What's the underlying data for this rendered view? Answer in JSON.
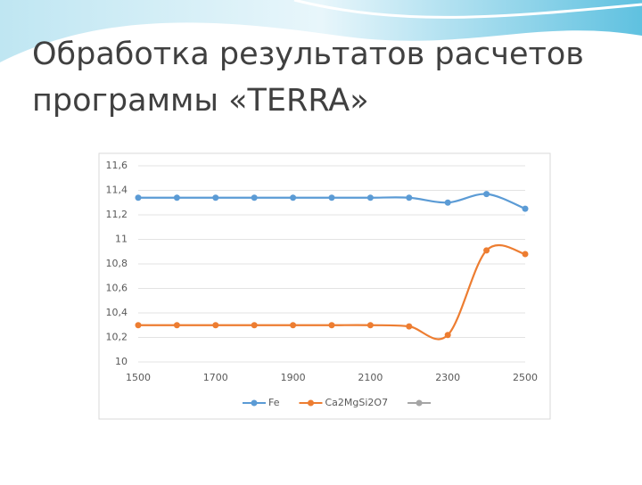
{
  "slide_title": [
    "Обработка результатов расчетов",
    "программы «TERRA»"
  ],
  "chart_data": {
    "type": "line",
    "x": [
      1500,
      1600,
      1700,
      1800,
      1900,
      2000,
      2100,
      2200,
      2300,
      2400,
      2500
    ],
    "xlim": [
      1500,
      2500
    ],
    "xticks": [
      1500,
      1700,
      1900,
      2100,
      2300,
      2500
    ],
    "ylim": [
      10,
      11.6
    ],
    "yticks": [
      10,
      {
        "value": 10.2,
        "label": "10,2"
      },
      {
        "value": 10.4,
        "label": "10,4"
      },
      {
        "value": 10.6,
        "label": "10,6"
      },
      {
        "value": 10.8,
        "label": "10,8"
      },
      11,
      {
        "value": 11.2,
        "label": "11,2"
      },
      {
        "value": 11.4,
        "label": "11,4"
      },
      {
        "value": 11.6,
        "label": "11,6"
      }
    ],
    "grid": true,
    "smooth": true,
    "legend": "bottom",
    "series": [
      {
        "name": "Fe",
        "color": "#5b9bd5",
        "values": [
          11.34,
          11.34,
          11.34,
          11.34,
          11.34,
          11.34,
          11.34,
          11.34,
          11.3,
          11.37,
          11.25
        ]
      },
      {
        "name": "Ca2MgSi2O7",
        "color": "#ed7d31",
        "values": [
          10.3,
          10.3,
          10.3,
          10.3,
          10.3,
          10.3,
          10.3,
          10.29,
          10.22,
          10.91,
          10.88
        ]
      },
      {
        "color": "#a5a5a5",
        "values": [
          null,
          null,
          null,
          null,
          null,
          null,
          null,
          null,
          null,
          null,
          null
        ]
      }
    ]
  }
}
